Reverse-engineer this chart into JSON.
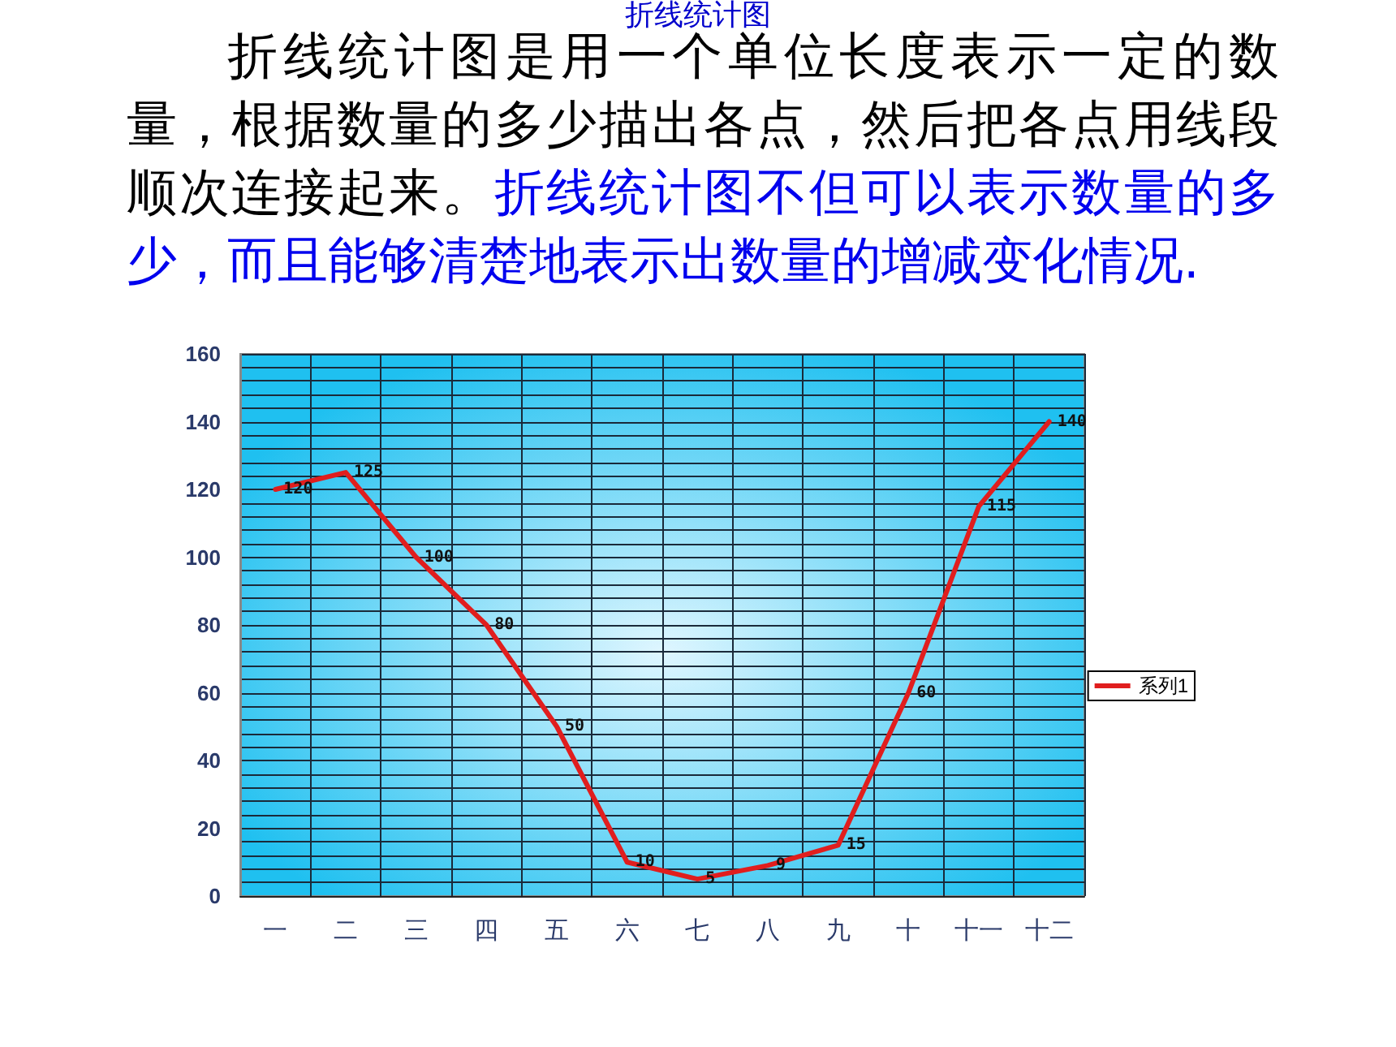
{
  "chart_data": {
    "type": "line",
    "title": "折线统计图",
    "annotations": [
      "折线统计图是用一个单位长度表示一定的数量，根据数量的多少描出各点，然后把各点用线段顺次连接起来。",
      "折线统计图不但可以表示数量的多少，而且能够清楚地表示出数量的增减变化情况."
    ],
    "categories": [
      "一",
      "二",
      "三",
      "四",
      "五",
      "六",
      "七",
      "八",
      "九",
      "十",
      "十一",
      "十二"
    ],
    "series": [
      {
        "name": "系列1",
        "color": "#e01e1e",
        "values": [
          120,
          125,
          100,
          80,
          50,
          10,
          5,
          9,
          15,
          60,
          115,
          140
        ]
      }
    ],
    "ylim": [
      0,
      160
    ],
    "yticks": [
      0,
      20,
      40,
      60,
      80,
      100,
      120,
      140,
      160
    ],
    "grid": true,
    "legend": "right",
    "marker": "none",
    "line_style": "solid",
    "data_labels": true
  }
}
